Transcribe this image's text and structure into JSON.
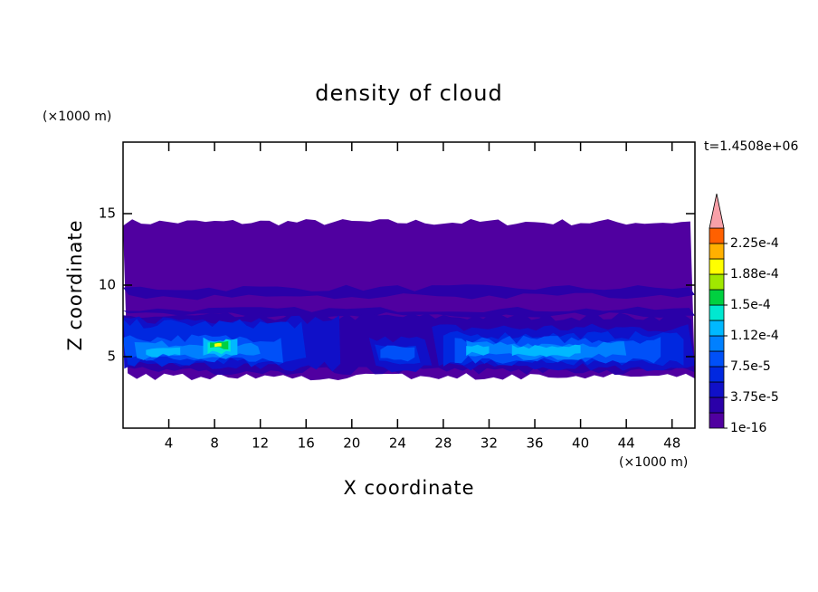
{
  "chart_data": {
    "type": "contour",
    "title": "density of cloud",
    "x_label": "X coordinate",
    "y_label": "Z coordinate",
    "x_unit": "(×1000 m)",
    "y_unit": "(×1000 m)",
    "time_label": "t=1.4508e+06",
    "xlim": [
      0,
      50
    ],
    "ylim": [
      0,
      20
    ],
    "xticks": [
      4,
      8,
      12,
      16,
      20,
      24,
      28,
      32,
      36,
      40,
      44,
      48
    ],
    "yticks": [
      5,
      10,
      15
    ],
    "colorbar": {
      "colors": [
        "#5000a0",
        "#2a00a8",
        "#1010c8",
        "#0028e0",
        "#0050f8",
        "#0080ff",
        "#00b8ff",
        "#00e8d0",
        "#00d040",
        "#a0e800",
        "#ffff00",
        "#ffb000",
        "#ff6000"
      ],
      "over_color": "#f8a0a8",
      "ticks": [
        {
          "value": 1e-16,
          "label": "1e-16"
        },
        {
          "value": 3.75e-05,
          "label": "3.75e-5"
        },
        {
          "value": 7.5e-05,
          "label": "7.5e-5"
        },
        {
          "value": 0.000112,
          "label": "1.12e-4"
        },
        {
          "value": 0.00015,
          "label": "1.5e-4"
        },
        {
          "value": 0.000188,
          "label": "1.88e-4"
        },
        {
          "value": 0.000225,
          "label": "2.25e-4"
        }
      ]
    }
  }
}
